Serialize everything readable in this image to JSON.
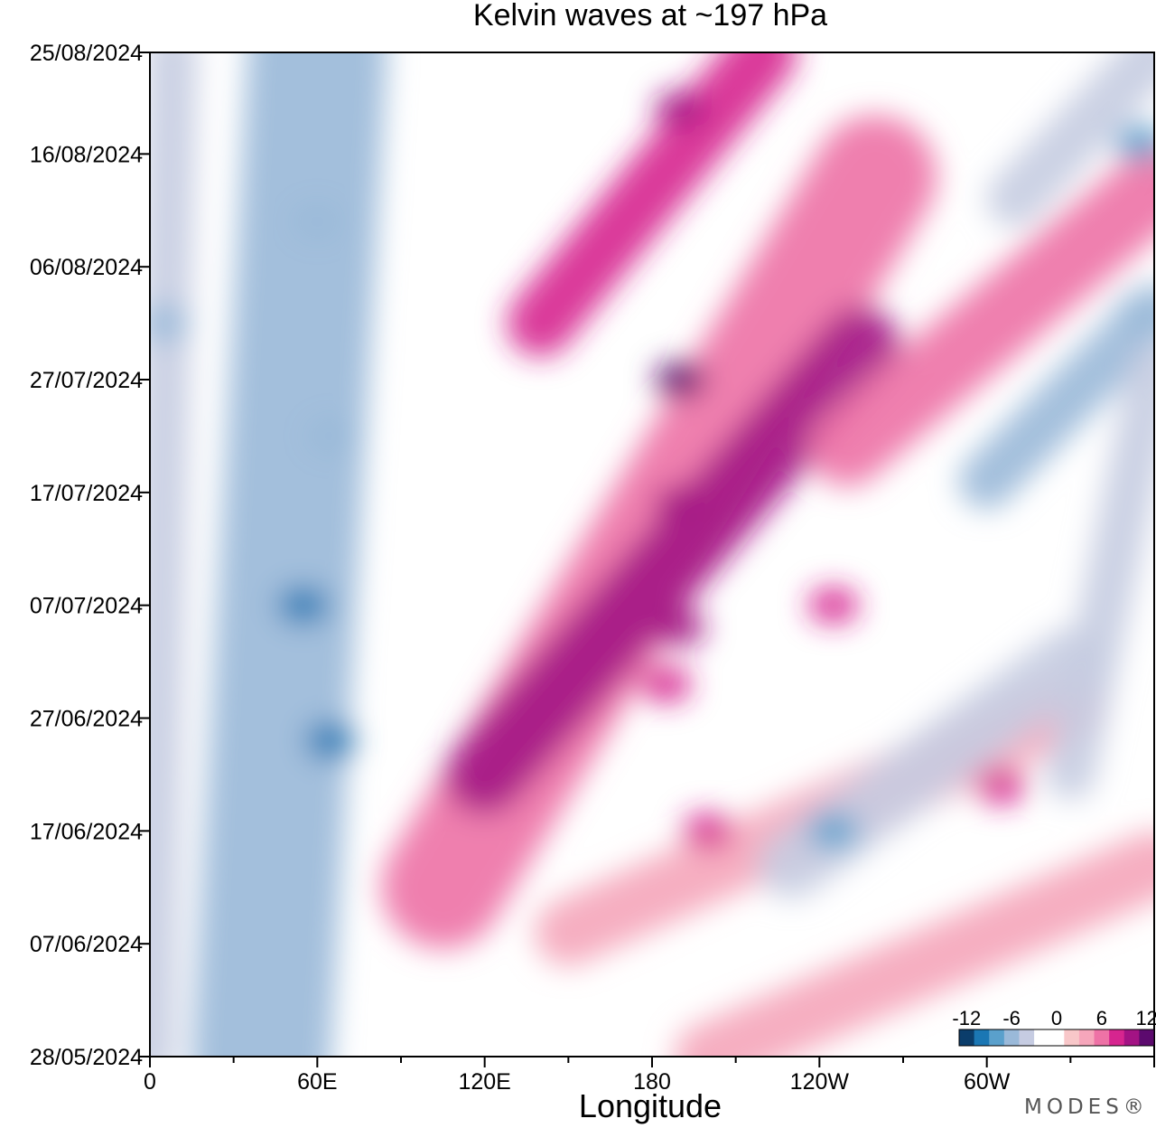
{
  "chart_data": {
    "type": "heatmap",
    "title": "Kelvin waves at ~197 hPa",
    "xlabel": "Longitude",
    "ylabel": "",
    "x_ticks": [
      {
        "lon": 0,
        "label": "0"
      },
      {
        "lon": 60,
        "label": "60E"
      },
      {
        "lon": 120,
        "label": "120E"
      },
      {
        "lon": 180,
        "label": "180"
      },
      {
        "lon": 240,
        "label": "120W"
      },
      {
        "lon": 300,
        "label": "60W"
      }
    ],
    "xlim": [
      0,
      360
    ],
    "y_ticks": [
      "28/05/2024",
      "07/06/2024",
      "17/06/2024",
      "27/06/2024",
      "07/07/2024",
      "17/07/2024",
      "27/07/2024",
      "06/08/2024",
      "16/08/2024",
      "25/08/2024"
    ],
    "ylim": [
      "28/05/2024",
      "25/08/2024"
    ],
    "colorbar": {
      "placement": "bottom-right",
      "levels": [
        -12,
        -10,
        -8,
        -6,
        -4,
        -2,
        0,
        2,
        4,
        6,
        8,
        10,
        12
      ],
      "tick_labels": [
        "-12",
        "-6",
        "0",
        "6",
        "12"
      ],
      "colors": [
        "#0b3d6b",
        "#1b77b4",
        "#5aa0cc",
        "#9ab9d9",
        "#c6cce2",
        "#ffffff",
        "#ffffff",
        "#f8c7c9",
        "#f6a6bb",
        "#ee72a6",
        "#d6258f",
        "#a31384",
        "#5c0a6e"
      ]
    },
    "bands": [
      {
        "lon_start": 40,
        "date_start": "28/05/2024",
        "lon_end": 60,
        "date_end": "25/08/2024",
        "value": -6,
        "spread": 25
      },
      {
        "lon_start": 0,
        "date_start": "28/05/2024",
        "lon_end": 8,
        "date_end": "25/08/2024",
        "value": -4,
        "spread": 9
      },
      {
        "lon_start": 105,
        "date_start": "12/06/2024",
        "lon_end": 260,
        "date_end": "14/08/2024",
        "value": 6,
        "spread": 22
      },
      {
        "lon_start": 120,
        "date_start": "22/06/2024",
        "lon_end": 255,
        "date_end": "30/07/2024",
        "value": 9,
        "spread": 14
      },
      {
        "lon_start": 150,
        "date_start": "08/06/2024",
        "lon_end": 330,
        "date_end": "28/06/2024",
        "value": 4,
        "spread": 12
      },
      {
        "lon_start": 200,
        "date_start": "28/05/2024",
        "lon_end": 360,
        "date_end": "14/06/2024",
        "value": 4,
        "spread": 12
      },
      {
        "lon_start": 140,
        "date_start": "01/08/2024",
        "lon_end": 220,
        "date_end": "25/08/2024",
        "value": 8,
        "spread": 12
      },
      {
        "lon_start": 250,
        "date_start": "21/07/2024",
        "lon_end": 360,
        "date_end": "13/08/2024",
        "value": 5,
        "spread": 14
      },
      {
        "lon_start": 230,
        "date_start": "14/06/2024",
        "lon_end": 330,
        "date_end": "02/07/2024",
        "value": -5,
        "spread": 12
      },
      {
        "lon_start": 300,
        "date_start": "18/07/2024",
        "lon_end": 360,
        "date_end": "02/08/2024",
        "value": -6,
        "spread": 10
      },
      {
        "lon_start": 310,
        "date_start": "12/08/2024",
        "lon_end": 360,
        "date_end": "25/08/2024",
        "value": -5,
        "spread": 10
      },
      {
        "lon_start": 330,
        "date_start": "22/06/2024",
        "lon_end": 360,
        "date_end": "28/07/2024",
        "value": -4,
        "spread": 9
      }
    ],
    "blobs": [
      {
        "lon": 65,
        "date": "25/06/2024",
        "value": -10
      },
      {
        "lon": 55,
        "date": "07/07/2024",
        "value": -10
      },
      {
        "lon": 60,
        "date": "10/08/2024",
        "value": -7
      },
      {
        "lon": 65,
        "date": "22/07/2024",
        "value": -7
      },
      {
        "lon": 5,
        "date": "01/08/2024",
        "value": -7
      },
      {
        "lon": 190,
        "date": "27/07/2024",
        "value": 11
      },
      {
        "lon": 190,
        "date": "05/07/2024",
        "value": 10
      },
      {
        "lon": 190,
        "date": "20/08/2024",
        "value": 9
      },
      {
        "lon": 190,
        "date": "16/07/2024",
        "value": 9
      },
      {
        "lon": 185,
        "date": "30/06/2024",
        "value": 8
      },
      {
        "lon": 200,
        "date": "17/06/2024",
        "value": 8
      },
      {
        "lon": 245,
        "date": "17/06/2024",
        "value": -8
      },
      {
        "lon": 355,
        "date": "17/08/2024",
        "value": -8
      },
      {
        "lon": 355,
        "date": "02/08/2024",
        "value": -7
      },
      {
        "lon": 305,
        "date": "21/06/2024",
        "value": 7
      },
      {
        "lon": 245,
        "date": "07/07/2024",
        "value": 7
      }
    ]
  },
  "branding": {
    "watermark": "MODES®"
  }
}
